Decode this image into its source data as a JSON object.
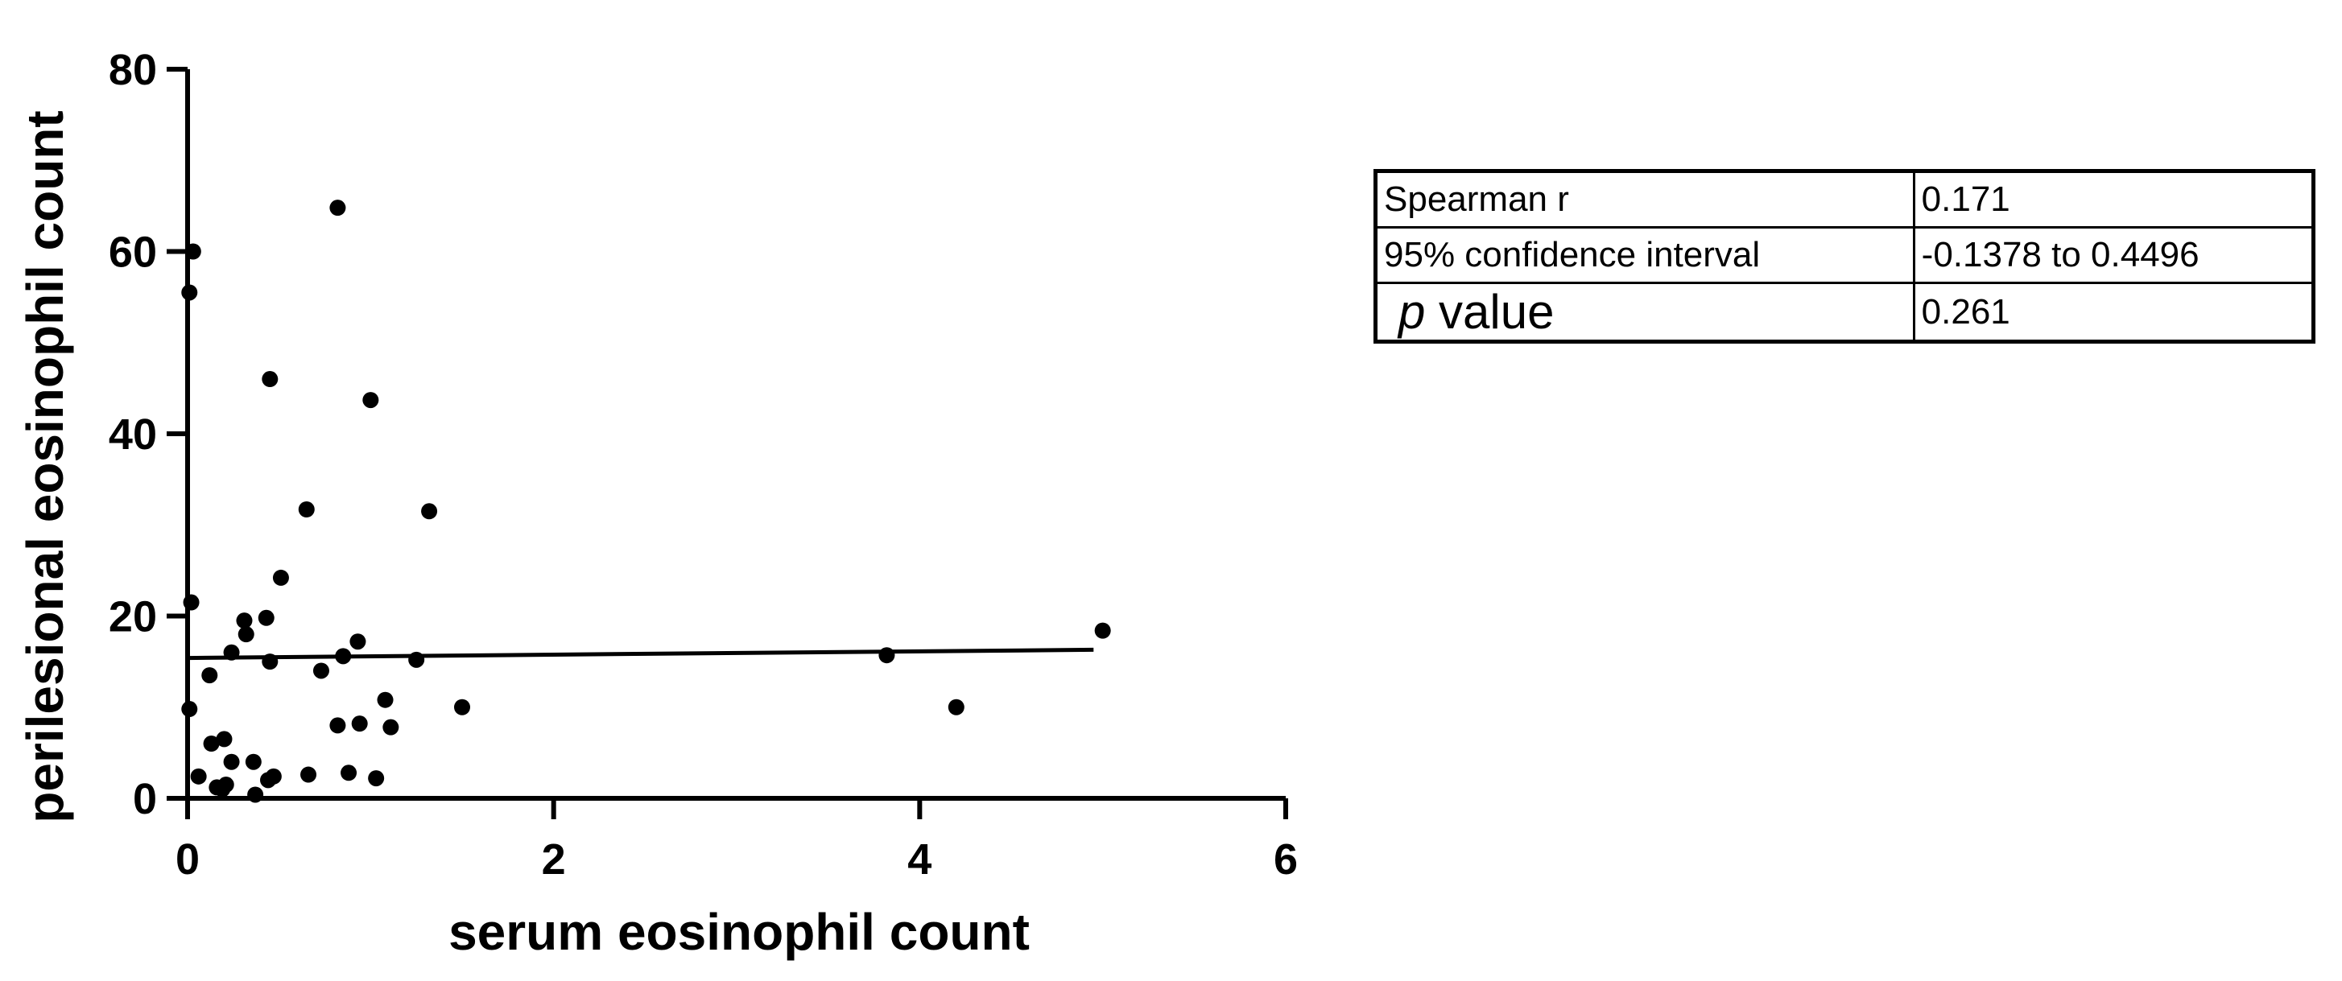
{
  "chart_data": {
    "type": "scatter",
    "title": "",
    "xlabel": "serum eosinophil count",
    "ylabel": "perilesional eosinophil count",
    "xlim": [
      0,
      6
    ],
    "ylim": [
      0,
      80
    ],
    "x_ticks": [
      0,
      2,
      4,
      6
    ],
    "y_ticks": [
      0,
      20,
      40,
      60,
      80
    ],
    "grid": false,
    "points": [
      {
        "x": 0.01,
        "y": 55.5
      },
      {
        "x": 0.03,
        "y": 60.0
      },
      {
        "x": 0.02,
        "y": 21.5
      },
      {
        "x": 0.01,
        "y": 9.8
      },
      {
        "x": 0.06,
        "y": 2.4
      },
      {
        "x": 0.12,
        "y": 13.5
      },
      {
        "x": 0.13,
        "y": 6.0
      },
      {
        "x": 0.2,
        "y": 6.5
      },
      {
        "x": 0.24,
        "y": 4.0
      },
      {
        "x": 0.24,
        "y": 16.0
      },
      {
        "x": 0.16,
        "y": 1.2
      },
      {
        "x": 0.19,
        "y": 1.0
      },
      {
        "x": 0.21,
        "y": 1.5
      },
      {
        "x": 0.31,
        "y": 19.5
      },
      {
        "x": 0.32,
        "y": 18.0
      },
      {
        "x": 0.36,
        "y": 4.0
      },
      {
        "x": 0.37,
        "y": 0.4
      },
      {
        "x": 0.43,
        "y": 19.8
      },
      {
        "x": 0.45,
        "y": 46.0
      },
      {
        "x": 0.45,
        "y": 15.0
      },
      {
        "x": 0.44,
        "y": 2.0
      },
      {
        "x": 0.47,
        "y": 2.4
      },
      {
        "x": 0.51,
        "y": 24.2
      },
      {
        "x": 0.65,
        "y": 31.7
      },
      {
        "x": 0.66,
        "y": 2.6
      },
      {
        "x": 0.73,
        "y": 14.0
      },
      {
        "x": 0.82,
        "y": 64.8
      },
      {
        "x": 0.82,
        "y": 8.0
      },
      {
        "x": 0.85,
        "y": 15.6
      },
      {
        "x": 0.88,
        "y": 2.8
      },
      {
        "x": 0.93,
        "y": 17.2
      },
      {
        "x": 0.94,
        "y": 8.2
      },
      {
        "x": 1.0,
        "y": 43.7
      },
      {
        "x": 1.03,
        "y": 2.2
      },
      {
        "x": 1.08,
        "y": 10.8
      },
      {
        "x": 1.11,
        "y": 7.8
      },
      {
        "x": 1.25,
        "y": 15.2
      },
      {
        "x": 1.32,
        "y": 31.5
      },
      {
        "x": 1.5,
        "y": 10.0
      },
      {
        "x": 3.82,
        "y": 15.7
      },
      {
        "x": 4.2,
        "y": 10.0
      },
      {
        "x": 5.0,
        "y": 18.4
      }
    ],
    "fit_line": {
      "x": [
        0.0,
        4.95
      ],
      "y": [
        15.4,
        16.3
      ]
    }
  },
  "stats_table": [
    {
      "label": "Spearman r",
      "value": "0.171"
    },
    {
      "label": "95% confidence interval",
      "value": "-0.1378 to 0.4496"
    },
    {
      "label_italic": "p",
      "label": " value",
      "value": "0.261"
    }
  ]
}
